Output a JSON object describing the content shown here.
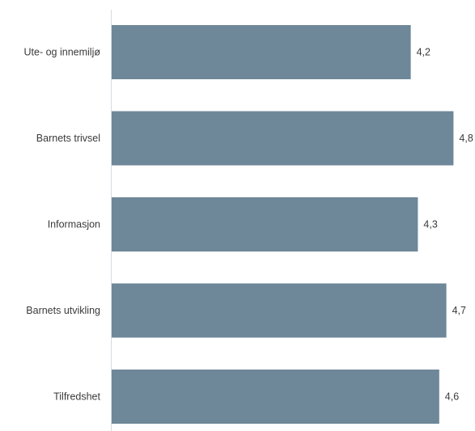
{
  "chart_data": {
    "type": "bar",
    "orientation": "horizontal",
    "categories": [
      "Ute- og innemiljø",
      "Barnets trivsel",
      "Informasjon",
      "Barnets utvikling",
      "Tilfredshet"
    ],
    "values": [
      4.2,
      4.8,
      4.3,
      4.7,
      4.6
    ],
    "value_labels": [
      "4,2",
      "4,8",
      "4,3",
      "4,7",
      "4,6"
    ],
    "xlim": [
      0,
      5
    ],
    "grid": false,
    "bar_color": "#6e8799",
    "axis_color": "#d5dce2"
  }
}
